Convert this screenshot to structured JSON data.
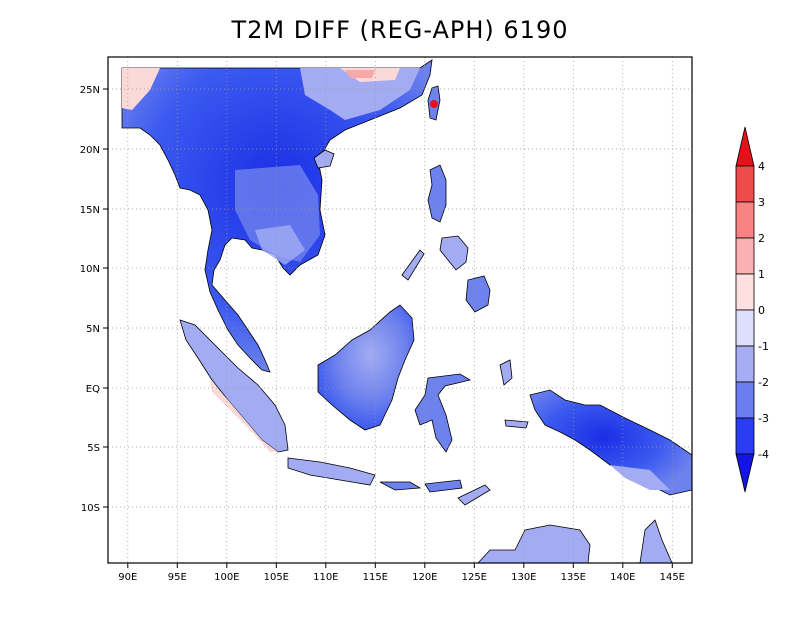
{
  "title": "T2M DIFF (REG-APH) 6190",
  "map": {
    "lon_range": [
      88,
      147
    ],
    "lat_range": [
      -15,
      28
    ],
    "lon_ticks": [
      "90E",
      "95E",
      "100E",
      "105E",
      "110E",
      "115E",
      "120E",
      "125E",
      "130E",
      "135E",
      "140E",
      "145E"
    ],
    "lat_ticks": [
      "25N",
      "20N",
      "15N",
      "10N",
      "5N",
      "EQ",
      "5S",
      "10S"
    ],
    "grid": "dotted",
    "colors": {
      "deep_blue": "#1a2ee6",
      "blue": "#3c5af0",
      "mid_blue": "#6e82ee",
      "light_blue": "#a3acf2",
      "pale_blue": "#d8dcfa",
      "pale_red": "#fbd9d9",
      "light_red": "#f7a8a8",
      "coast": "#000000"
    }
  },
  "colorbar": {
    "labels": [
      "4",
      "3",
      "2",
      "1",
      "0",
      "-1",
      "-2",
      "-3",
      "-4"
    ],
    "colors": [
      "#e4101a",
      "#f04b4b",
      "#f78383",
      "#fbb1b1",
      "#fde1e1",
      "#dde0fa",
      "#a7adf2",
      "#6c7df0",
      "#2a3df0",
      "#1414e6"
    ]
  }
}
